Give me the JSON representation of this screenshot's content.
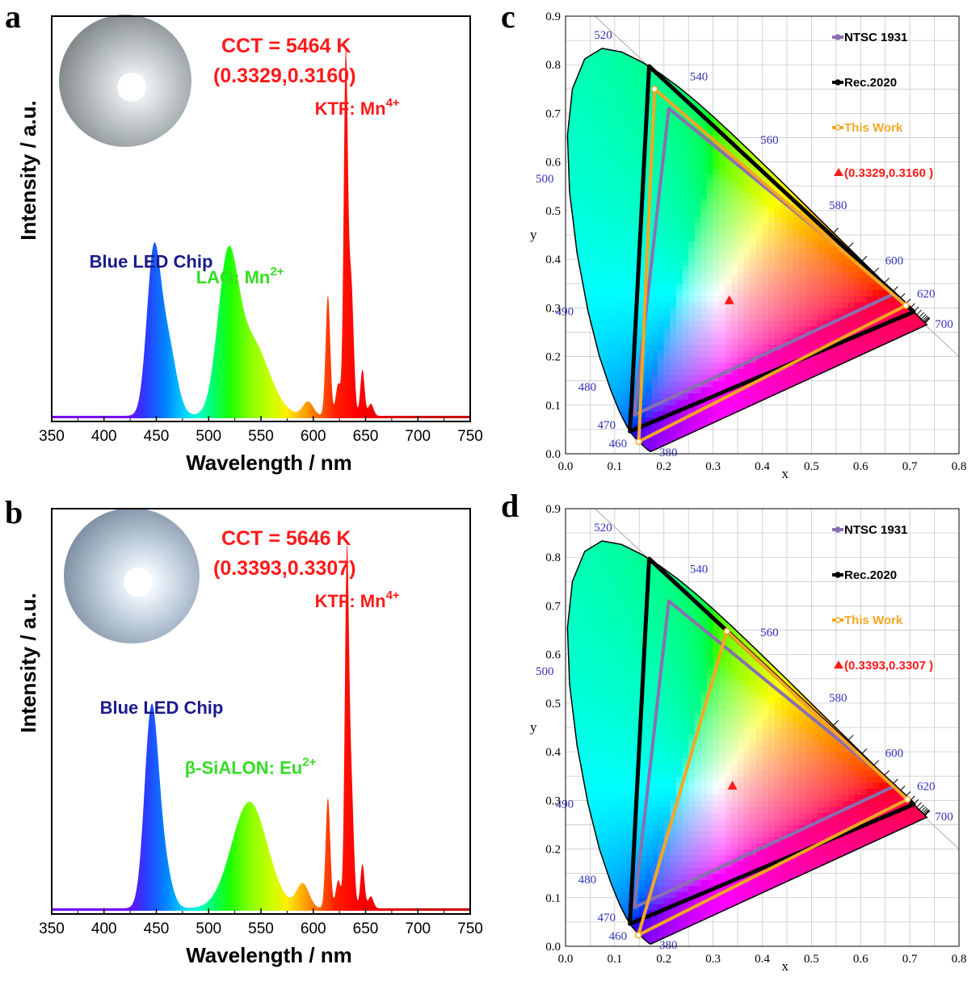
{
  "spectral_gradient": {
    "wavelengths": [
      420,
      440,
      460,
      475,
      490,
      505,
      520,
      540,
      560,
      575,
      590,
      605,
      620,
      640,
      660,
      700
    ],
    "colors": [
      "#7a00ff",
      "#2a3cff",
      "#0088ff",
      "#00ccff",
      "#00ffd0",
      "#00ff66",
      "#1aff00",
      "#88ff00",
      "#ccff00",
      "#ffee00",
      "#ffaa00",
      "#ff6600",
      "#ff2200",
      "#ff0000",
      "#ee0000",
      "#cc0000"
    ]
  },
  "chart_data": [
    {
      "panel": "a",
      "type": "line",
      "xlabel": "Wavelength / nm",
      "ylabel": "Intensity / a.u.",
      "xlim": [
        350,
        750
      ],
      "xticks": [
        350,
        400,
        450,
        500,
        550,
        600,
        650,
        700,
        750
      ],
      "ylim": [
        0,
        1
      ],
      "filled_under_curve": true,
      "fill": "spectral",
      "peaks": [
        {
          "center": 447,
          "amplitude": 0.365,
          "width": 6.5
        },
        {
          "center": 460,
          "amplitude": 0.19,
          "width": 8.5
        },
        {
          "center": 518,
          "amplitude": 0.335,
          "width": 9.5
        },
        {
          "center": 540,
          "amplitude": 0.19,
          "width": 17
        },
        {
          "center": 595,
          "amplitude": 0.035,
          "width": 5
        },
        {
          "center": 614,
          "amplitude": 0.3,
          "width": 2.2
        },
        {
          "center": 624,
          "amplitude": 0.08,
          "width": 2.5
        },
        {
          "center": 631,
          "amplitude": 0.87,
          "width": 1.9
        },
        {
          "center": 636,
          "amplitude": 0.34,
          "width": 2.5
        },
        {
          "center": 647,
          "amplitude": 0.115,
          "width": 2
        },
        {
          "center": 655,
          "amplitude": 0.03,
          "width": 2.5
        }
      ],
      "cct": {
        "line1": "CCT = 5464 K",
        "line2": "(0.3329,0.3160)"
      },
      "annotations": [
        {
          "text": "Blue LED Chip",
          "x": 445,
          "y": 0.375,
          "color": "#1a1a8c"
        },
        {
          "text": "LAO: Mn",
          "sup": "2+",
          "x": 530,
          "y": 0.335,
          "color": "#33dd22"
        },
        {
          "text": "KTF: Mn",
          "sup": "4+",
          "x": 642,
          "y": 0.755,
          "color": "#ff1a1a"
        }
      ]
    },
    {
      "panel": "b",
      "type": "line",
      "xlabel": "Wavelength / nm",
      "ylabel": "Intensity / a.u.",
      "xlim": [
        350,
        750
      ],
      "xticks": [
        350,
        400,
        450,
        500,
        550,
        600,
        650,
        700,
        750
      ],
      "ylim": [
        0,
        1
      ],
      "filled_under_curve": true,
      "fill": "spectral",
      "peaks": [
        {
          "center": 445,
          "amplitude": 0.465,
          "width": 6.5
        },
        {
          "center": 456,
          "amplitude": 0.12,
          "width": 7.5
        },
        {
          "center": 539,
          "amplitude": 0.265,
          "width": 17
        },
        {
          "center": 590,
          "amplitude": 0.06,
          "width": 6
        },
        {
          "center": 614,
          "amplitude": 0.275,
          "width": 2.2
        },
        {
          "center": 624,
          "amplitude": 0.07,
          "width": 2.5
        },
        {
          "center": 632,
          "amplitude": 0.81,
          "width": 1.9
        },
        {
          "center": 636,
          "amplitude": 0.32,
          "width": 2.5
        },
        {
          "center": 647,
          "amplitude": 0.11,
          "width": 2
        },
        {
          "center": 655,
          "amplitude": 0.03,
          "width": 2.5
        }
      ],
      "cct": {
        "line1": "CCT = 5646 K",
        "line2": "(0.3393,0.3307)"
      },
      "annotations": [
        {
          "text": "Blue LED Chip",
          "x": 455,
          "y": 0.49,
          "color": "#1a1a8c"
        },
        {
          "text": "β-SiALON: Eu",
          "sup": "2+",
          "x": 540,
          "y": 0.34,
          "color": "#33dd22"
        },
        {
          "text": "KTF: Mn",
          "sup": "4+",
          "x": 642,
          "y": 0.755,
          "color": "#ff1a1a"
        }
      ]
    },
    {
      "panel": "c",
      "type": "scatter",
      "xlabel": "x",
      "ylabel": "y",
      "xlim": [
        0,
        0.8
      ],
      "ylim": [
        0,
        0.9
      ],
      "xticks": [
        0.0,
        0.1,
        0.2,
        0.3,
        0.4,
        0.5,
        0.6,
        0.7,
        0.8
      ],
      "yticks": [
        0.0,
        0.1,
        0.2,
        0.3,
        0.4,
        0.5,
        0.6,
        0.7,
        0.8,
        0.9
      ],
      "spectral_locus": [
        [
          0.1741,
          0.005
        ],
        [
          0.1738,
          0.0049
        ],
        [
          0.1733,
          0.0048
        ],
        [
          0.1726,
          0.0048
        ],
        [
          0.1714,
          0.0051
        ],
        [
          0.1689,
          0.0069
        ],
        [
          0.164,
          0.0109
        ],
        [
          0.1566,
          0.0177
        ],
        [
          0.144,
          0.0297
        ],
        [
          0.1355,
          0.0399
        ],
        [
          0.1241,
          0.0578
        ],
        [
          0.1096,
          0.0868
        ],
        [
          0.0913,
          0.1327
        ],
        [
          0.0687,
          0.2007
        ],
        [
          0.0454,
          0.295
        ],
        [
          0.0235,
          0.4127
        ],
        [
          0.0082,
          0.5384
        ],
        [
          0.0039,
          0.6548
        ],
        [
          0.0139,
          0.7502
        ],
        [
          0.0389,
          0.812
        ],
        [
          0.0743,
          0.8338
        ],
        [
          0.1142,
          0.8262
        ],
        [
          0.1547,
          0.8059
        ],
        [
          0.1929,
          0.7816
        ],
        [
          0.2296,
          0.7543
        ],
        [
          0.2658,
          0.7243
        ],
        [
          0.3016,
          0.6923
        ],
        [
          0.3373,
          0.6589
        ],
        [
          0.3731,
          0.6245
        ],
        [
          0.4087,
          0.5896
        ],
        [
          0.4441,
          0.5547
        ],
        [
          0.4788,
          0.5202
        ],
        [
          0.5125,
          0.4866
        ],
        [
          0.5448,
          0.4544
        ],
        [
          0.5752,
          0.4242
        ],
        [
          0.6029,
          0.3965
        ],
        [
          0.627,
          0.3725
        ],
        [
          0.6482,
          0.3514
        ],
        [
          0.6658,
          0.334
        ],
        [
          0.6801,
          0.3197
        ],
        [
          0.6915,
          0.3083
        ],
        [
          0.7006,
          0.2993
        ],
        [
          0.7079,
          0.292
        ],
        [
          0.714,
          0.2859
        ],
        [
          0.719,
          0.2809
        ],
        [
          0.723,
          0.277
        ],
        [
          0.726,
          0.274
        ],
        [
          0.7283,
          0.2717
        ],
        [
          0.73,
          0.27
        ],
        [
          0.7311,
          0.2689
        ],
        [
          0.732,
          0.268
        ],
        [
          0.7347,
          0.2653
        ]
      ],
      "wavelength_labels": [
        {
          "label": "380",
          "x": 0.1741,
          "y": 0.005
        },
        {
          "label": "460",
          "x": 0.144,
          "y": 0.0297
        },
        {
          "label": "470",
          "x": 0.1241,
          "y": 0.0578
        },
        {
          "label": "480",
          "x": 0.0913,
          "y": 0.1327
        },
        {
          "label": "490",
          "x": 0.0454,
          "y": 0.295
        },
        {
          "label": "500",
          "x": 0.0082,
          "y": 0.5384
        },
        {
          "label": "520",
          "x": 0.0743,
          "y": 0.8338
        },
        {
          "label": "540",
          "x": 0.2296,
          "y": 0.7543
        },
        {
          "label": "560",
          "x": 0.3731,
          "y": 0.6245
        },
        {
          "label": "580",
          "x": 0.5125,
          "y": 0.4866
        },
        {
          "label": "600",
          "x": 0.627,
          "y": 0.3725
        },
        {
          "label": "620",
          "x": 0.6915,
          "y": 0.3083
        },
        {
          "label": "700",
          "x": 0.7347,
          "y": 0.2653
        }
      ],
      "series": [
        {
          "name": "NTSC 1931",
          "color": "#8a6fb0",
          "points": [
            [
              0.67,
              0.33
            ],
            [
              0.21,
              0.71
            ],
            [
              0.14,
              0.08
            ]
          ]
        },
        {
          "name": "Rec.2020",
          "color": "#000000",
          "points": [
            [
              0.708,
              0.292
            ],
            [
              0.17,
              0.797
            ],
            [
              0.131,
              0.046
            ]
          ]
        },
        {
          "name": "This Work",
          "color": "#f5a623",
          "points": [
            [
              0.692,
              0.305
            ],
            [
              0.181,
              0.75
            ],
            [
              0.149,
              0.025
            ]
          ]
        },
        {
          "name": "(0.3329,0.3160 )",
          "color": "#ff1a1a",
          "marker": "triangle",
          "points": [
            [
              0.3329,
              0.316
            ]
          ]
        }
      ]
    },
    {
      "panel": "d",
      "type": "scatter",
      "xlabel": "x",
      "ylabel": "y",
      "xlim": [
        0,
        0.8
      ],
      "ylim": [
        0,
        0.9
      ],
      "xticks": [
        0.0,
        0.1,
        0.2,
        0.3,
        0.4,
        0.5,
        0.6,
        0.7,
        0.8
      ],
      "yticks": [
        0.0,
        0.1,
        0.2,
        0.3,
        0.4,
        0.5,
        0.6,
        0.7,
        0.8,
        0.9
      ],
      "spectral_locus": [
        [
          0.1741,
          0.005
        ],
        [
          0.1738,
          0.0049
        ],
        [
          0.1733,
          0.0048
        ],
        [
          0.1726,
          0.0048
        ],
        [
          0.1714,
          0.0051
        ],
        [
          0.1689,
          0.0069
        ],
        [
          0.164,
          0.0109
        ],
        [
          0.1566,
          0.0177
        ],
        [
          0.144,
          0.0297
        ],
        [
          0.1355,
          0.0399
        ],
        [
          0.1241,
          0.0578
        ],
        [
          0.1096,
          0.0868
        ],
        [
          0.0913,
          0.1327
        ],
        [
          0.0687,
          0.2007
        ],
        [
          0.0454,
          0.295
        ],
        [
          0.0235,
          0.4127
        ],
        [
          0.0082,
          0.5384
        ],
        [
          0.0039,
          0.6548
        ],
        [
          0.0139,
          0.7502
        ],
        [
          0.0389,
          0.812
        ],
        [
          0.0743,
          0.8338
        ],
        [
          0.1142,
          0.8262
        ],
        [
          0.1547,
          0.8059
        ],
        [
          0.1929,
          0.7816
        ],
        [
          0.2296,
          0.7543
        ],
        [
          0.2658,
          0.7243
        ],
        [
          0.3016,
          0.6923
        ],
        [
          0.3373,
          0.6589
        ],
        [
          0.3731,
          0.6245
        ],
        [
          0.4087,
          0.5896
        ],
        [
          0.4441,
          0.5547
        ],
        [
          0.4788,
          0.5202
        ],
        [
          0.5125,
          0.4866
        ],
        [
          0.5448,
          0.4544
        ],
        [
          0.5752,
          0.4242
        ],
        [
          0.6029,
          0.3965
        ],
        [
          0.627,
          0.3725
        ],
        [
          0.6482,
          0.3514
        ],
        [
          0.6658,
          0.334
        ],
        [
          0.6801,
          0.3197
        ],
        [
          0.6915,
          0.3083
        ],
        [
          0.7006,
          0.2993
        ],
        [
          0.7079,
          0.292
        ],
        [
          0.714,
          0.2859
        ],
        [
          0.719,
          0.2809
        ],
        [
          0.723,
          0.277
        ],
        [
          0.726,
          0.274
        ],
        [
          0.7283,
          0.2717
        ],
        [
          0.73,
          0.27
        ],
        [
          0.7311,
          0.2689
        ],
        [
          0.732,
          0.268
        ],
        [
          0.7347,
          0.2653
        ]
      ],
      "wavelength_labels": [
        {
          "label": "380",
          "x": 0.1741,
          "y": 0.005
        },
        {
          "label": "460",
          "x": 0.144,
          "y": 0.0297
        },
        {
          "label": "470",
          "x": 0.1241,
          "y": 0.0578
        },
        {
          "label": "480",
          "x": 0.0913,
          "y": 0.1327
        },
        {
          "label": "490",
          "x": 0.0454,
          "y": 0.295
        },
        {
          "label": "500",
          "x": 0.0082,
          "y": 0.5384
        },
        {
          "label": "520",
          "x": 0.0743,
          "y": 0.8338
        },
        {
          "label": "540",
          "x": 0.2296,
          "y": 0.7543
        },
        {
          "label": "560",
          "x": 0.3731,
          "y": 0.6245
        },
        {
          "label": "580",
          "x": 0.5125,
          "y": 0.4866
        },
        {
          "label": "600",
          "x": 0.627,
          "y": 0.3725
        },
        {
          "label": "620",
          "x": 0.6915,
          "y": 0.3083
        },
        {
          "label": "700",
          "x": 0.7347,
          "y": 0.2653
        }
      ],
      "series": [
        {
          "name": "NTSC 1931",
          "color": "#8a6fb0",
          "points": [
            [
              0.67,
              0.33
            ],
            [
              0.21,
              0.71
            ],
            [
              0.14,
              0.08
            ]
          ]
        },
        {
          "name": "Rec.2020",
          "color": "#000000",
          "points": [
            [
              0.708,
              0.292
            ],
            [
              0.17,
              0.797
            ],
            [
              0.131,
              0.046
            ]
          ]
        },
        {
          "name": "This Work",
          "color": "#f5a623",
          "points": [
            [
              0.695,
              0.302
            ],
            [
              0.328,
              0.648
            ],
            [
              0.148,
              0.023
            ]
          ]
        },
        {
          "name": "(0.3393,0.3307 )",
          "color": "#ff1a1a",
          "marker": "triangle",
          "points": [
            [
              0.3393,
              0.3307
            ]
          ]
        }
      ]
    }
  ]
}
